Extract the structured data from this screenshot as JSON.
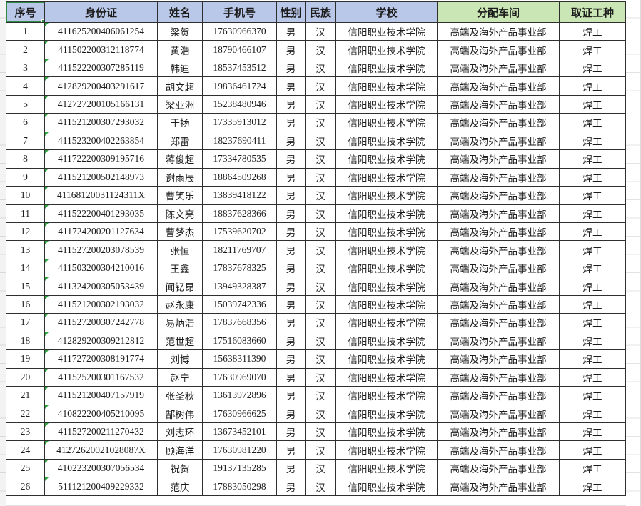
{
  "app": {
    "view": "spreadsheet-grid"
  },
  "colors": {
    "header_blue": "#b9c7e8",
    "header_green": "#cae6b5",
    "selection_green": "#2e8b41",
    "error_indicator_green": "#2fa33c",
    "cell_border": "#2f2f2f",
    "faint_gridline": "#d9d9d9"
  },
  "selection": {
    "active_cell_label": "序号"
  },
  "table": {
    "headers": [
      "序号",
      "身份证",
      "姓名",
      "手机号",
      "性别",
      "民族",
      "学校",
      "分配车间",
      "取证工种"
    ],
    "rows": [
      [
        "1",
        "411625200406061254",
        "梁贺",
        "17630966370",
        "男",
        "汉",
        "信阳职业技术学院",
        "高端及海外产品事业部",
        "焊工"
      ],
      [
        "2",
        "411502200312118774",
        "黄浩",
        "18790466107",
        "男",
        "汉",
        "信阳职业技术学院",
        "高端及海外产品事业部",
        "焊工"
      ],
      [
        "3",
        "411522200307285119",
        "韩迪",
        "18537453512",
        "男",
        "汉",
        "信阳职业技术学院",
        "高端及海外产品事业部",
        "焊工"
      ],
      [
        "4",
        "412829200403291617",
        "胡文超",
        "19836461724",
        "男",
        "汉",
        "信阳职业技术学院",
        "高端及海外产品事业部",
        "焊工"
      ],
      [
        "5",
        "412727200105166131",
        "梁亚洲",
        "15238480946",
        "男",
        "汉",
        "信阳职业技术学院",
        "高端及海外产品事业部",
        "焊工"
      ],
      [
        "6",
        "411521200307293032",
        "于扬",
        "17335913012",
        "男",
        "汉",
        "信阳职业技术学院",
        "高端及海外产品事业部",
        "焊工"
      ],
      [
        "7",
        "411523200402263854",
        "郑雷",
        "18237690411",
        "男",
        "汉",
        "信阳职业技术学院",
        "高端及海外产品事业部",
        "焊工"
      ],
      [
        "8",
        "411722200309195716",
        "蒋俊超",
        "17334780535",
        "男",
        "汉",
        "信阳职业技术学院",
        "高端及海外产品事业部",
        "焊工"
      ],
      [
        "9",
        "411521200502148973",
        "谢雨辰",
        "18864509268",
        "男",
        "汉",
        "信阳职业技术学院",
        "高端及海外产品事业部",
        "焊工"
      ],
      [
        "10",
        "41168120031124311X",
        "曹笑乐",
        "13839418122",
        "男",
        "汉",
        "信阳职业技术学院",
        "高端及海外产品事业部",
        "焊工"
      ],
      [
        "11",
        "411522200401293035",
        "陈文亮",
        "18837628366",
        "男",
        "汉",
        "信阳职业技术学院",
        "高端及海外产品事业部",
        "焊工"
      ],
      [
        "12",
        "411724200201127634",
        "曹梦杰",
        "17539620702",
        "男",
        "汉",
        "信阳职业技术学院",
        "高端及海外产品事业部",
        "焊工"
      ],
      [
        "13",
        "411527200203078539",
        "张恒",
        "18211769707",
        "男",
        "汉",
        "信阳职业技术学院",
        "高端及海外产品事业部",
        "焊工"
      ],
      [
        "14",
        "411503200304210016",
        "王鑫",
        "17837678325",
        "男",
        "汉",
        "信阳职业技术学院",
        "高端及海外产品事业部",
        "焊工"
      ],
      [
        "15",
        "411324200305053439",
        "闻钇昂",
        "13949328387",
        "男",
        "汉",
        "信阳职业技术学院",
        "高端及海外产品事业部",
        "焊工"
      ],
      [
        "16",
        "411521200302193032",
        "赵永康",
        "15039742336",
        "男",
        "汉",
        "信阳职业技术学院",
        "高端及海外产品事业部",
        "焊工"
      ],
      [
        "17",
        "411527200307242778",
        "易炳浩",
        "17837668356",
        "男",
        "汉",
        "信阳职业技术学院",
        "高端及海外产品事业部",
        "焊工"
      ],
      [
        "18",
        "412829200309212812",
        "范世超",
        "17516083660",
        "男",
        "汉",
        "信阳职业技术学院",
        "高端及海外产品事业部",
        "焊工"
      ],
      [
        "19",
        "411727200308191774",
        "刘博",
        "15638311390",
        "男",
        "汉",
        "信阳职业技术学院",
        "高端及海外产品事业部",
        "焊工"
      ],
      [
        "20",
        "411525200301167532",
        "赵宁",
        "17630969070",
        "男",
        "汉",
        "信阳职业技术学院",
        "高端及海外产品事业部",
        "焊工"
      ],
      [
        "21",
        "411521200407157919",
        "张圣秋",
        "13613972896",
        "男",
        "汉",
        "信阳职业技术学院",
        "高端及海外产品事业部",
        "焊工"
      ],
      [
        "22",
        "410822200405210095",
        "郜树伟",
        "17630966625",
        "男",
        "汉",
        "信阳职业技术学院",
        "高端及海外产品事业部",
        "焊工"
      ],
      [
        "23",
        "411527200211270432",
        "刘志环",
        "13673452101",
        "男",
        "汉",
        "信阳职业技术学院",
        "高端及海外产品事业部",
        "焊工"
      ],
      [
        "24",
        "41272620021028087X",
        "顾海洋",
        "17630981220",
        "男",
        "汉",
        "信阳职业技术学院",
        "高端及海外产品事业部",
        "焊工"
      ],
      [
        "25",
        "410223200307056534",
        "祝贺",
        "19137135285",
        "男",
        "汉",
        "信阳职业技术学院",
        "高端及海外产品事业部",
        "焊工"
      ],
      [
        "26",
        "511121200409229332",
        "范庆",
        "17883050298",
        "男",
        "汉",
        "信阳职业技术学院",
        "高端及海外产品事业部",
        "焊工"
      ]
    ]
  }
}
